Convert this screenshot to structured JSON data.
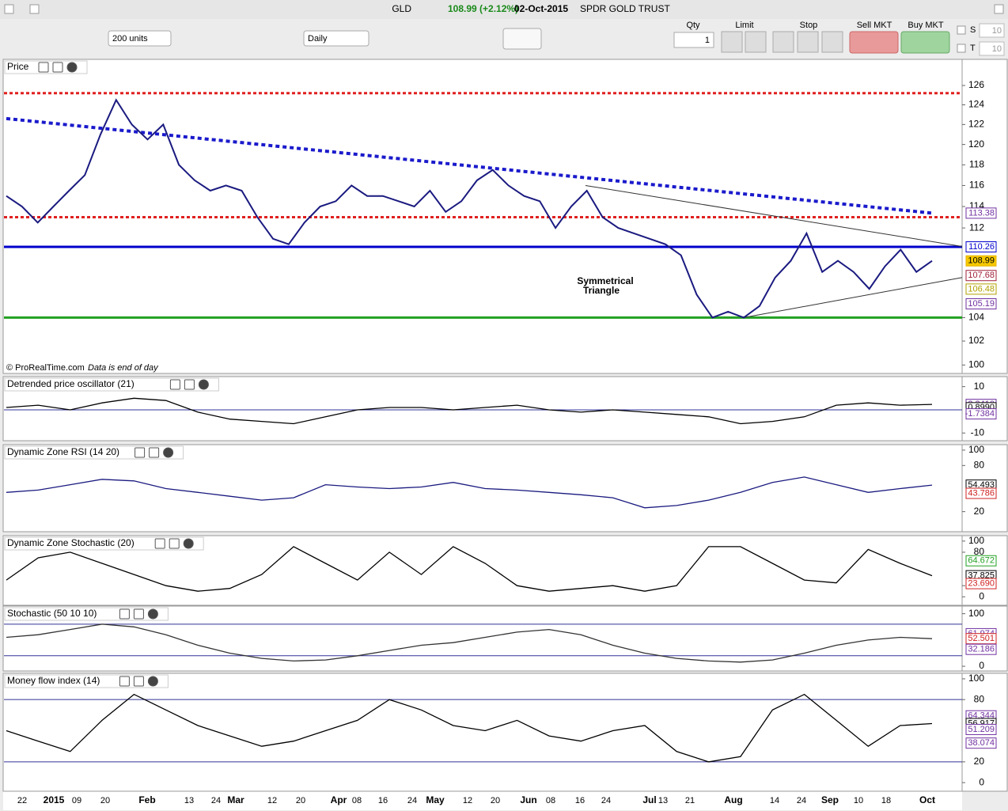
{
  "toolbar": {
    "symbol": "GLD",
    "change": "108.99 (+2.12%)",
    "date": "02-Oct-2015",
    "name": "SPDR GOLD TRUST",
    "units": "200 units",
    "period": "Daily",
    "qty_label": "Qty",
    "qty": "1",
    "limit": "Limit",
    "stop": "Stop",
    "sell": "Sell MKT",
    "buy": "Buy MKT",
    "s_label": "S",
    "s_value": "10",
    "t_label": "T",
    "t_value": "10"
  },
  "x_labels": [
    "22",
    "2015",
    "09",
    "20",
    "Feb",
    "13",
    "24",
    "Mar",
    "12",
    "20",
    "Apr",
    "08",
    "16",
    "24",
    "May",
    "12",
    "20",
    "Jun",
    "08",
    "16",
    "24",
    "Jul",
    "13",
    "21",
    "Aug",
    "14",
    "24",
    "Sep",
    "10",
    "18",
    "Oct"
  ],
  "annotation": [
    "Symmetrical",
    "Triangle"
  ],
  "footer": "© ProRealTime.com",
  "note": "Data is end of day",
  "panels": [
    {
      "title": "Price",
      "log_scale": true,
      "ylim": [
        99.5,
        128.5
      ],
      "yticks": [
        100,
        102,
        104,
        112,
        114,
        116,
        118,
        120,
        122,
        124,
        126
      ],
      "series": [
        {
          "color": "#1a1a80",
          "values": [
            115,
            114,
            112.5,
            114,
            115.5,
            117,
            121,
            124.5,
            122,
            120.5,
            122,
            118,
            116.5,
            115.5,
            116,
            115.5,
            113,
            111,
            110.5,
            112.5,
            114,
            114.5,
            116,
            115,
            115,
            114.5,
            114,
            115.5,
            113.5,
            114.5,
            116.5,
            117.5,
            116,
            115,
            114.5,
            112,
            114,
            115.5,
            113,
            112,
            111.5,
            111,
            110.5,
            109.5,
            106,
            104,
            104.5,
            104,
            105,
            107.5,
            109,
            111.5,
            108,
            109,
            108,
            106.5,
            108.5,
            110,
            108,
            108.99
          ]
        }
      ],
      "levels": [
        {
          "value": 110.26,
          "color": "#0000cc",
          "dash": false
        },
        {
          "value": 104,
          "color": "#22a022",
          "dash": false
        },
        {
          "value": 125.2,
          "color": "#e02020",
          "dash": true
        },
        {
          "value": 113,
          "color": "#e02020",
          "dash": true
        }
      ],
      "trendlines": [
        {
          "values": [
            122.6,
            113.38
          ],
          "color": "#1a1acc"
        },
        {
          "values": [
            116,
            110.3
          ],
          "color": "#333333"
        },
        {
          "values": [
            104,
            107.5
          ],
          "color": "#333333"
        }
      ],
      "tags": [
        {
          "value": 113.38,
          "color": "#7030a0"
        },
        {
          "value": 110.26,
          "color": "#0000cc"
        },
        {
          "value": 108.99,
          "color": "#e8b400"
        },
        {
          "value": 107.68,
          "color": "#a0203a"
        },
        {
          "value": 106.48,
          "color": "#b0a000"
        },
        {
          "value": 105.19,
          "color": "#7030a0"
        }
      ]
    },
    {
      "title": "Detrended price oscillator (21)",
      "log_scale": false,
      "ylim": [
        -12.3,
        13.3
      ],
      "yticks": [
        10,
        -10
      ],
      "series": [
        {
          "color": "#000000",
          "values": [
            1,
            2,
            0,
            3,
            5,
            4,
            -1,
            -4,
            -5,
            -6,
            -3,
            0,
            1,
            1,
            0,
            1,
            2,
            0,
            -1,
            0,
            -1,
            -2,
            -3,
            -6,
            -5,
            -3,
            2,
            3,
            2,
            2.341
          ]
        }
      ],
      "levels": [
        {
          "value": 0,
          "color": "#333399",
          "dash": false
        }
      ],
      "tags": [
        {
          "value": 2.341,
          "label": "2.3410",
          "color": "#7030a0"
        },
        {
          "value": 0.899,
          "label": "0.8990",
          "color": "#000000"
        },
        {
          "value": -1.7384,
          "color": "#7030a0"
        }
      ]
    },
    {
      "title": "Dynamic Zone RSI (14 20)",
      "log_scale": false,
      "ylim": [
        -3,
        104
      ],
      "yticks": [
        100,
        80,
        20
      ],
      "series": [
        {
          "color": "#1a1a80",
          "values": [
            45,
            48,
            55,
            62,
            60,
            50,
            45,
            40,
            35,
            38,
            55,
            52,
            50,
            52,
            58,
            50,
            48,
            45,
            42,
            38,
            25,
            28,
            35,
            45,
            58,
            65,
            55,
            45,
            50,
            54.493
          ]
        }
      ],
      "levels": [],
      "tags": [
        {
          "value": 54.493,
          "color": "#000000"
        },
        {
          "value": 43.786,
          "color": "#d02020"
        }
      ]
    },
    {
      "title": "Dynamic Zone Stochastic (20)",
      "log_scale": false,
      "ylim": [
        -11,
        105.5
      ],
      "yticks": [
        100,
        80,
        20,
        0
      ],
      "series": [
        {
          "color": "#000000",
          "values": [
            30,
            70,
            80,
            60,
            40,
            20,
            10,
            15,
            40,
            90,
            60,
            30,
            80,
            40,
            90,
            60,
            20,
            10,
            15,
            20,
            10,
            20,
            90,
            90,
            60,
            30,
            25,
            85,
            60,
            37.825
          ]
        }
      ],
      "levels": [],
      "tags": [
        {
          "value": 64.672,
          "color": "#22a022"
        },
        {
          "value": 37.825,
          "color": "#000000"
        },
        {
          "value": 23.69,
          "label": "23.690",
          "color": "#d02020"
        }
      ]
    },
    {
      "title": "Stochastic (50 10 10)",
      "log_scale": false,
      "ylim": [
        -4.4,
        110
      ],
      "yticks": [
        100,
        0
      ],
      "series": [
        {
          "color": "#333333",
          "values": [
            55,
            60,
            70,
            80,
            75,
            60,
            40,
            25,
            15,
            10,
            12,
            20,
            30,
            40,
            45,
            55,
            65,
            70,
            60,
            40,
            25,
            15,
            10,
            8,
            12,
            25,
            40,
            50,
            55,
            52.501
          ]
        }
      ],
      "levels": [
        {
          "value": 80,
          "color": "#333399",
          "dash": false
        },
        {
          "value": 20,
          "color": "#333399",
          "dash": false
        }
      ],
      "tags": [
        {
          "value": 61.974,
          "color": "#7030a0"
        },
        {
          "value": 52.501,
          "color": "#d02020"
        },
        {
          "value": 32.186,
          "color": "#7030a0"
        }
      ]
    },
    {
      "title": "Money flow index (14)",
      "log_scale": false,
      "ylim": [
        -6,
        103
      ],
      "yticks": [
        100,
        80,
        20,
        0
      ],
      "series": [
        {
          "color": "#000000",
          "values": [
            50,
            40,
            30,
            60,
            85,
            70,
            55,
            45,
            35,
            40,
            50,
            60,
            80,
            70,
            55,
            50,
            60,
            45,
            40,
            50,
            55,
            30,
            20,
            25,
            70,
            85,
            60,
            35,
            55,
            56.917
          ]
        }
      ],
      "levels": [
        {
          "value": 80,
          "color": "#333399",
          "dash": false
        },
        {
          "value": 20,
          "color": "#333399",
          "dash": false
        }
      ],
      "tags": [
        {
          "value": 64.344,
          "color": "#7030a0"
        },
        {
          "value": 56.917,
          "color": "#000000"
        },
        {
          "value": 51.209,
          "color": "#7030a0"
        },
        {
          "value": 38.074,
          "color": "#7030a0"
        }
      ]
    }
  ]
}
